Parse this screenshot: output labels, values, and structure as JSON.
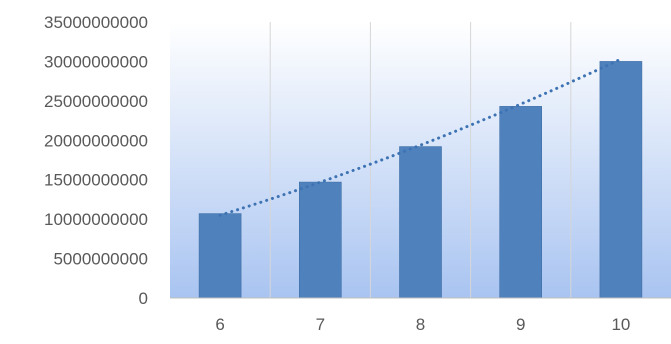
{
  "chart_data": {
    "type": "bar",
    "categories": [
      "6",
      "7",
      "8",
      "9",
      "10"
    ],
    "values": [
      10700000000,
      14700000000,
      19200000000,
      24300000000,
      30000000000
    ],
    "y_ticks": [
      0,
      5000000000,
      10000000000,
      15000000000,
      20000000000,
      25000000000,
      30000000000,
      35000000000
    ],
    "y_tick_labels": [
      "0",
      "5000000000",
      "10000000000",
      "15000000000",
      "20000000000",
      "25000000000",
      "30000000000",
      "35000000000"
    ],
    "ylim": [
      0,
      35000000000
    ],
    "trendline": {
      "type": "polynomial",
      "style": "dotted",
      "start_value": 10500000000,
      "end_value": 30300000000
    },
    "grid": {
      "vertical": true,
      "horizontal": false
    },
    "legend": "none",
    "colors": {
      "bar": "#4f81bd",
      "bar_edge": "#3f6fa6",
      "trendline": "#3e73b3",
      "plot_bg_top": "#ffffff",
      "plot_bg_bottom": "#a9c4f1",
      "grid": "#d6d6d6",
      "axis": "#bfbfbf",
      "tick_text": "#595959"
    }
  }
}
